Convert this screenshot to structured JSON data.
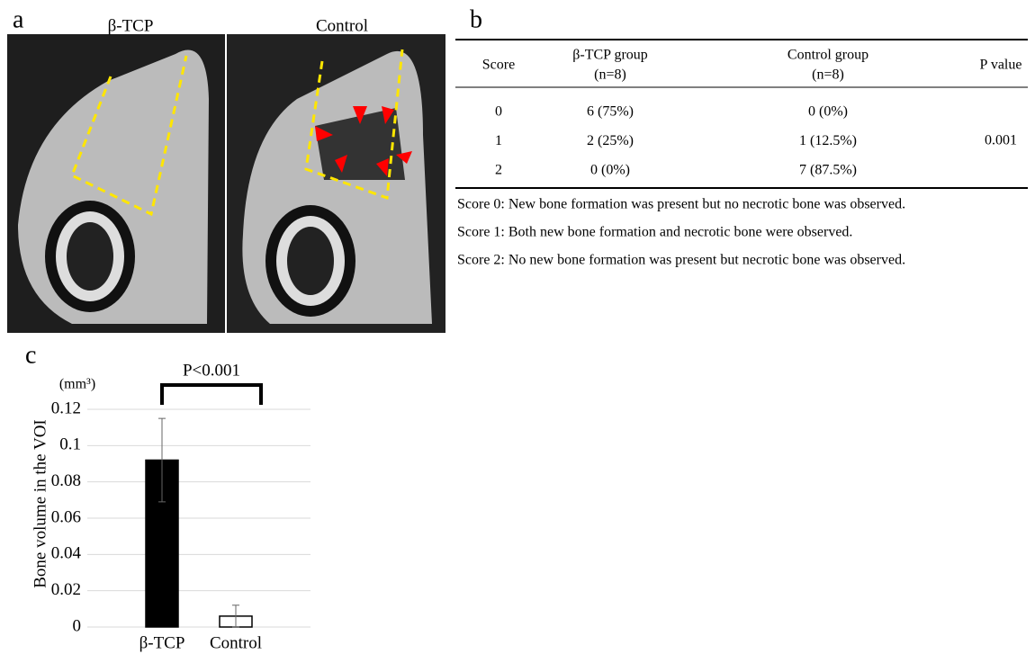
{
  "panel_a": {
    "label": "a",
    "images": [
      {
        "title": "β-TCP"
      },
      {
        "title": "Control"
      }
    ]
  },
  "panel_b": {
    "label": "b",
    "table": {
      "header": [
        [
          "Score"
        ],
        [
          "β-TCP group",
          "(n=8)"
        ],
        [
          "Control group",
          "(n=8)"
        ],
        [
          "P value"
        ]
      ],
      "rows": [
        [
          "0",
          "6 (75%)",
          "0 (0%)"
        ],
        [
          "1",
          "2 (25%)",
          "1 (12.5%)"
        ],
        [
          "2",
          "0 (0%)",
          "7 (87.5%)"
        ]
      ],
      "p_value": "0.001"
    },
    "notes": [
      "Score 0: New bone formation was present but no necrotic bone was observed.",
      "Score 1: Both new bone formation and necrotic bone were observed.",
      "Score 2: No new bone formation was present but necrotic bone was observed."
    ]
  },
  "chart_data": {
    "type": "bar",
    "label": "c",
    "y_label": "Bone volume in the VOI",
    "unit": "(mm³)",
    "annotation": "P<0.001",
    "categories": [
      "β-TCP",
      "Control"
    ],
    "values": [
      0.092,
      0.006
    ],
    "errors": [
      0.023,
      0.006
    ],
    "colors": [
      "#000000",
      "#ffffff"
    ],
    "edge_color": "#000000",
    "ylim": [
      0,
      0.12
    ],
    "yticks": [
      0,
      0.02,
      0.04,
      0.06,
      0.08,
      0.1,
      0.12
    ],
    "grid": true
  }
}
